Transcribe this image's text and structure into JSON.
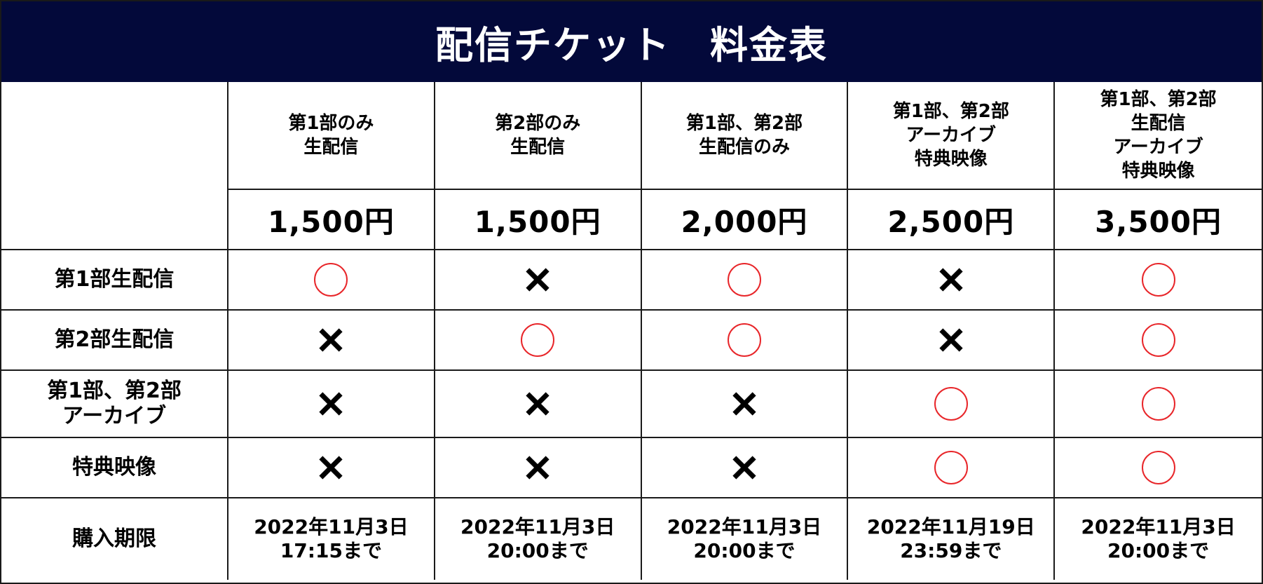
{
  "title": "配信チケット　料金表",
  "plans": [
    {
      "name": "第1部のみ\n生配信",
      "price": "1,500円"
    },
    {
      "name": "第2部のみ\n生配信",
      "price": "1,500円"
    },
    {
      "name": "第1部、第2部\n生配信のみ",
      "price": "2,000円"
    },
    {
      "name": "第1部、第2部\nアーカイブ\n特典映像",
      "price": "2,500円"
    },
    {
      "name": "第1部、第2部\n生配信\nアーカイブ\n特典映像",
      "price": "3,500円"
    }
  ],
  "rows": [
    {
      "label": "第1部生配信",
      "marks": [
        "circle",
        "cross",
        "circle",
        "cross",
        "circle"
      ]
    },
    {
      "label": "第2部生配信",
      "marks": [
        "cross",
        "circle",
        "circle",
        "cross",
        "circle"
      ]
    },
    {
      "label": "第1部、第2部\nアーカイブ",
      "marks": [
        "cross",
        "cross",
        "cross",
        "circle",
        "circle"
      ]
    },
    {
      "label": "特典映像",
      "marks": [
        "cross",
        "cross",
        "cross",
        "circle",
        "circle"
      ]
    }
  ],
  "deadline": {
    "label": "購入期限",
    "values": [
      "2022年11月3日\n17:15まで",
      "2022年11月3日\n20:00まで",
      "2022年11月3日\n20:00まで",
      "2022年11月19日\n23:59まで",
      "2022年11月3日\n20:00まで"
    ]
  },
  "colors": {
    "title_bar": "#03093a",
    "circle_mark": "#e8262a",
    "cross_mark": "#000000"
  },
  "icons": {
    "circle": "circle-mark-icon",
    "cross": "cross-mark-icon"
  }
}
